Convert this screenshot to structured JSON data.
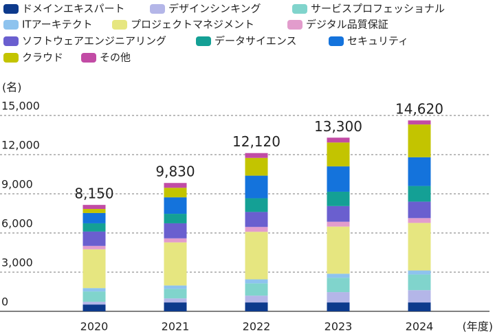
{
  "chart_data": {
    "type": "stacked_bar",
    "y_axis_label": "(名)",
    "x_axis_label": "(年度)",
    "categories": [
      "2020",
      "2021",
      "2022",
      "2023",
      "2024"
    ],
    "series": [
      {
        "name": "ドメインエキスパート",
        "color": "#0d3a8c",
        "values": [
          520,
          680,
          680,
          680,
          680
        ]
      },
      {
        "name": "デザインシンキング",
        "color": "#b4b6e8",
        "values": [
          210,
          310,
          520,
          790,
          940
        ]
      },
      {
        "name": "サービスプロフェッショナル",
        "color": "#80d4cc",
        "values": [
          790,
          730,
          940,
          1100,
          1200
        ]
      },
      {
        "name": "ITアーキテクト",
        "color": "#8ec3ee",
        "values": [
          260,
          260,
          310,
          310,
          310
        ]
      },
      {
        "name": "プロジェクトマネジメント",
        "color": "#e6e680",
        "values": [
          2970,
          3300,
          3640,
          3610,
          3640
        ]
      },
      {
        "name": "デジタル品質保証",
        "color": "#e29ccc",
        "values": [
          260,
          310,
          370,
          370,
          370
        ]
      },
      {
        "name": "ソフトウェアエンジニアリング",
        "color": "#6a5fcf",
        "values": [
          1100,
          1150,
          1150,
          1200,
          1260
        ]
      },
      {
        "name": "データサイエンス",
        "color": "#14a095",
        "values": [
          630,
          730,
          1050,
          1100,
          1200
        ]
      },
      {
        "name": "セキュリティ",
        "color": "#1473dc",
        "values": [
          790,
          1260,
          1730,
          1940,
          2200
        ]
      },
      {
        "name": "クラウド",
        "color": "#c3c400",
        "values": [
          310,
          730,
          1360,
          1830,
          2510
        ]
      },
      {
        "name": "その他",
        "color": "#c24ba5",
        "values": [
          310,
          370,
          370,
          370,
          310
        ]
      }
    ],
    "totals": [
      8150,
      9830,
      12120,
      13300,
      14620
    ],
    "total_labels": [
      "8,150",
      "9,830",
      "12,120",
      "13,300",
      "14,620"
    ],
    "ylim": [
      0,
      15000
    ],
    "yticks": [
      0,
      {
        "value": 3000,
        "label": "3,000"
      },
      {
        "value": 6000,
        "label": "6,000"
      },
      {
        "value": 9000,
        "label": "9,000"
      },
      {
        "value": 12000,
        "label": "12,000"
      },
      {
        "value": 15000,
        "label": "15,000"
      }
    ],
    "grid": true
  }
}
